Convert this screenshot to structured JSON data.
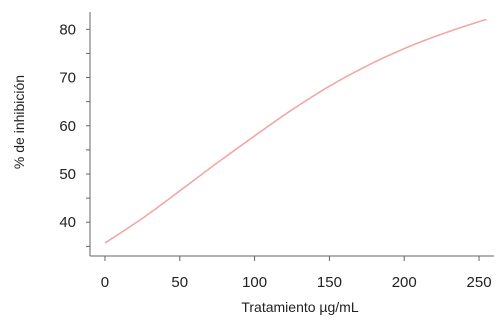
{
  "chart_data": {
    "type": "line",
    "title": "",
    "xlabel": "Tratamiento µg/mL",
    "ylabel": "% de inhibición",
    "xlim": [
      -10,
      260
    ],
    "ylim": [
      33,
      84
    ],
    "x_ticks": [
      0,
      50,
      100,
      150,
      200,
      250
    ],
    "y_ticks": [
      40,
      50,
      60,
      70,
      80
    ],
    "grid": false,
    "series": [
      {
        "color": "#f4a6a6",
        "x": [
          0,
          25,
          50,
          75,
          100,
          125,
          150,
          175,
          200,
          225,
          250,
          255
        ],
        "y": [
          35.7,
          40.8,
          46.5,
          52.3,
          57.9,
          63.3,
          68.2,
          72.4,
          76.0,
          79.0,
          81.6,
          82.0
        ]
      }
    ]
  }
}
